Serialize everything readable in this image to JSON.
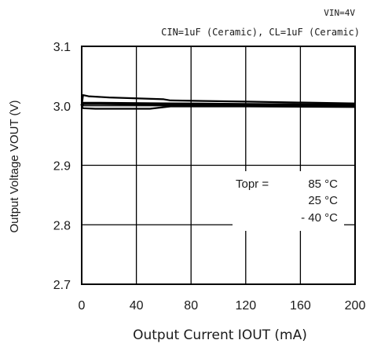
{
  "chart_data": {
    "type": "line",
    "conditions": {
      "vin": "VIN=4V",
      "caps": "CIN=1uF (Ceramic), CL=1uF (Ceramic)"
    },
    "xlabel": "Output Current IOUT (mA)",
    "ylabel": "Output Voltage VOUT (V)",
    "xlim": [
      0,
      200
    ],
    "ylim": [
      2.7,
      3.1
    ],
    "x_ticks": [
      0,
      40,
      80,
      120,
      160,
      200
    ],
    "y_ticks": [
      2.7,
      2.8,
      2.9,
      3.0,
      3.1
    ],
    "y_tick_labels": [
      "2.7",
      "2.8",
      "2.9",
      "3.0",
      "3.1"
    ],
    "grid": true,
    "legend": {
      "title": "Topr =",
      "entries": [
        "85 °C",
        "25 °C",
        "- 40 °C"
      ],
      "placement": "right-middle"
    },
    "series": [
      {
        "name": "85 °C",
        "x": [
          0,
          1,
          5,
          20,
          60,
          65,
          120,
          200
        ],
        "y": [
          3.0,
          3.018,
          3.016,
          3.014,
          3.011,
          3.009,
          3.007,
          3.004
        ]
      },
      {
        "name": "25 °C",
        "x": [
          0,
          1,
          10,
          60,
          120,
          200
        ],
        "y": [
          3.0,
          3.004,
          3.004,
          3.003,
          3.002,
          3.001
        ]
      },
      {
        "name": "- 40 °C",
        "x": [
          0,
          1,
          10,
          50,
          65,
          120,
          200
        ],
        "y": [
          3.0,
          2.996,
          2.995,
          2.995,
          2.999,
          2.999,
          2.998
        ]
      }
    ]
  }
}
